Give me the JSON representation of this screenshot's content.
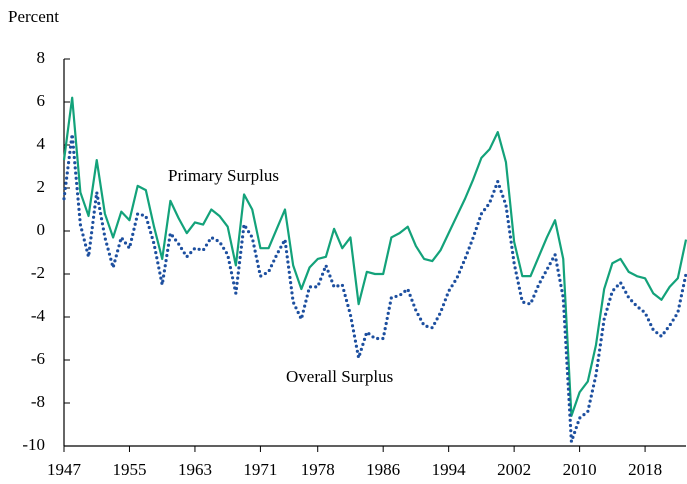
{
  "chart_data": {
    "type": "line",
    "y_label": "Percent",
    "annotations": [
      "Primary Surplus",
      "Overall Surplus"
    ],
    "x": [
      1947,
      1948,
      1949,
      1950,
      1951,
      1952,
      1953,
      1954,
      1955,
      1956,
      1957,
      1958,
      1959,
      1960,
      1961,
      1962,
      1963,
      1964,
      1965,
      1966,
      1967,
      1968,
      1969,
      1970,
      1971,
      1972,
      1973,
      1974,
      1975,
      1976,
      1977,
      1978,
      1979,
      1980,
      1981,
      1982,
      1983,
      1984,
      1985,
      1986,
      1987,
      1988,
      1989,
      1990,
      1991,
      1992,
      1993,
      1994,
      1995,
      1996,
      1997,
      1998,
      1999,
      2000,
      2001,
      2002,
      2003,
      2004,
      2005,
      2006,
      2007,
      2008,
      2009,
      2010,
      2011,
      2012,
      2013,
      2014,
      2015,
      2016,
      2017,
      2018,
      2019,
      2020,
      2021,
      2022,
      2023
    ],
    "series": [
      {
        "name": "Primary Surplus",
        "color": "#13a27a",
        "dash": "solid",
        "values": [
          3.3,
          6.2,
          1.8,
          0.7,
          3.3,
          0.8,
          -0.3,
          0.9,
          0.5,
          2.1,
          1.9,
          0.2,
          -1.3,
          1.4,
          0.6,
          -0.1,
          0.4,
          0.3,
          1.0,
          0.7,
          0.2,
          -1.6,
          1.7,
          1.0,
          -0.8,
          -0.8,
          0.1,
          1.0,
          -1.6,
          -2.7,
          -1.7,
          -1.3,
          -1.2,
          0.1,
          -0.8,
          -0.3,
          -3.4,
          -1.9,
          -2.0,
          -2.0,
          -0.3,
          -0.1,
          0.2,
          -0.7,
          -1.3,
          -1.4,
          -0.9,
          -0.1,
          0.7,
          1.5,
          2.4,
          3.4,
          3.8,
          4.6,
          3.2,
          -0.5,
          -2.1,
          -2.1,
          -1.2,
          -0.3,
          0.5,
          -1.3,
          -8.6,
          -7.5,
          -7.0,
          -5.3,
          -2.7,
          -1.5,
          -1.3,
          -1.9,
          -2.1,
          -2.2,
          -2.9,
          -3.2,
          -2.6,
          -2.2,
          -0.4
        ]
      },
      {
        "name": "Overall Surplus",
        "color": "#1d4f9f",
        "dash": "dotted",
        "values": [
          1.5,
          4.5,
          0.3,
          -1.2,
          1.8,
          -0.3,
          -1.7,
          -0.3,
          -0.8,
          0.8,
          0.7,
          -0.6,
          -2.5,
          -0.1,
          -0.6,
          -1.2,
          -0.8,
          -0.9,
          -0.3,
          -0.5,
          -1.1,
          -2.9,
          0.3,
          -0.3,
          -2.1,
          -1.9,
          -1.1,
          -0.4,
          -3.3,
          -4.1,
          -2.6,
          -2.6,
          -1.6,
          -2.6,
          -2.5,
          -3.9,
          -5.9,
          -4.7,
          -5.0,
          -5.0,
          -3.1,
          -3.0,
          -2.7,
          -3.7,
          -4.4,
          -4.5,
          -3.8,
          -2.8,
          -2.2,
          -1.3,
          -0.3,
          0.8,
          1.3,
          2.3,
          1.2,
          -1.5,
          -3.3,
          -3.4,
          -2.5,
          -1.8,
          -1.1,
          -3.1,
          -9.8,
          -8.7,
          -8.4,
          -6.7,
          -4.1,
          -2.8,
          -2.4,
          -3.1,
          -3.5,
          -3.8,
          -4.6,
          -4.9,
          -4.4,
          -3.8,
          -2.0
        ]
      }
    ],
    "xlim": [
      1947,
      2023
    ],
    "xticks": [
      1947,
      1955,
      1963,
      1971,
      1978,
      1986,
      1994,
      2002,
      2010,
      2018
    ],
    "ylim": [
      -10,
      8
    ],
    "yticks": [
      -10,
      -8,
      -6,
      -4,
      -2,
      0,
      2,
      4,
      6,
      8
    ],
    "grid": false
  }
}
